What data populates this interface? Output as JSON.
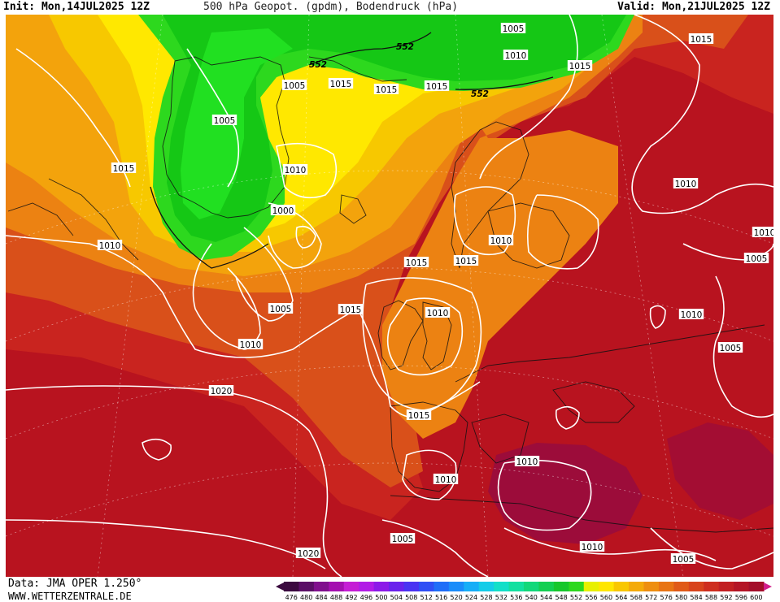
{
  "header": {
    "init": "Init: Mon,14JUL2025 12Z",
    "title": "500 hPa Geopot. (gpdm), Bodendruck (hPa)",
    "valid": "Valid: Mon,21JUL2025 12Z"
  },
  "footer": {
    "data_source": "Data: JMA OPER 1.250°",
    "website": "WWW.WETTERZENTRALE.DE"
  },
  "colors": {
    "green": "#15c715",
    "bright_green": "#21e021",
    "yellow": "#ffee00",
    "gold": "#f5c400",
    "orange": "#ee8a10",
    "dark_orange": "#dd5e18",
    "red": "#c92420",
    "dark_red": "#b01622",
    "crimson": "#9c0c3a",
    "isobar": "#ffffff"
  },
  "isobar_labels": [
    "1005",
    "1010",
    "1015",
    "552",
    "552",
    "552",
    "1005",
    "1015",
    "1015",
    "1015",
    "1005",
    "1010",
    "1015",
    "1000",
    "1010",
    "1015",
    "1015",
    "1010",
    "1010",
    "1015",
    "1005",
    "1015",
    "1010",
    "1010",
    "1010",
    "1005",
    "1020",
    "1015",
    "1005",
    "1010",
    "1010",
    "1010",
    "1005",
    "1020",
    "1010",
    "1005"
  ],
  "colorbar": {
    "labels": [
      "476",
      "480",
      "484",
      "488",
      "492",
      "496",
      "500",
      "504",
      "508",
      "512",
      "516",
      "520",
      "524",
      "528",
      "532",
      "536",
      "540",
      "544",
      "548",
      "552",
      "556",
      "560",
      "564",
      "568",
      "572",
      "576",
      "580",
      "584",
      "588",
      "592",
      "596",
      "600"
    ],
    "colors": [
      "#3b0a3f",
      "#5a0f66",
      "#80108d",
      "#a40fb0",
      "#c51dd5",
      "#b11ce6",
      "#8c1ae8",
      "#6a22ec",
      "#4a33f2",
      "#2f4ff5",
      "#1f6ef8",
      "#1a8cfa",
      "#16aef7",
      "#14cce8",
      "#13dfc8",
      "#12e0a0",
      "#12d87a",
      "#14cf52",
      "#17c72c",
      "#2dd81e",
      "#e8f000",
      "#ffe600",
      "#f9c700",
      "#f4aa0a",
      "#ee8e10",
      "#e87414",
      "#e05a18",
      "#d8441c",
      "#ce2e1f",
      "#c21f22",
      "#b41526",
      "#a40e2a"
    ]
  }
}
